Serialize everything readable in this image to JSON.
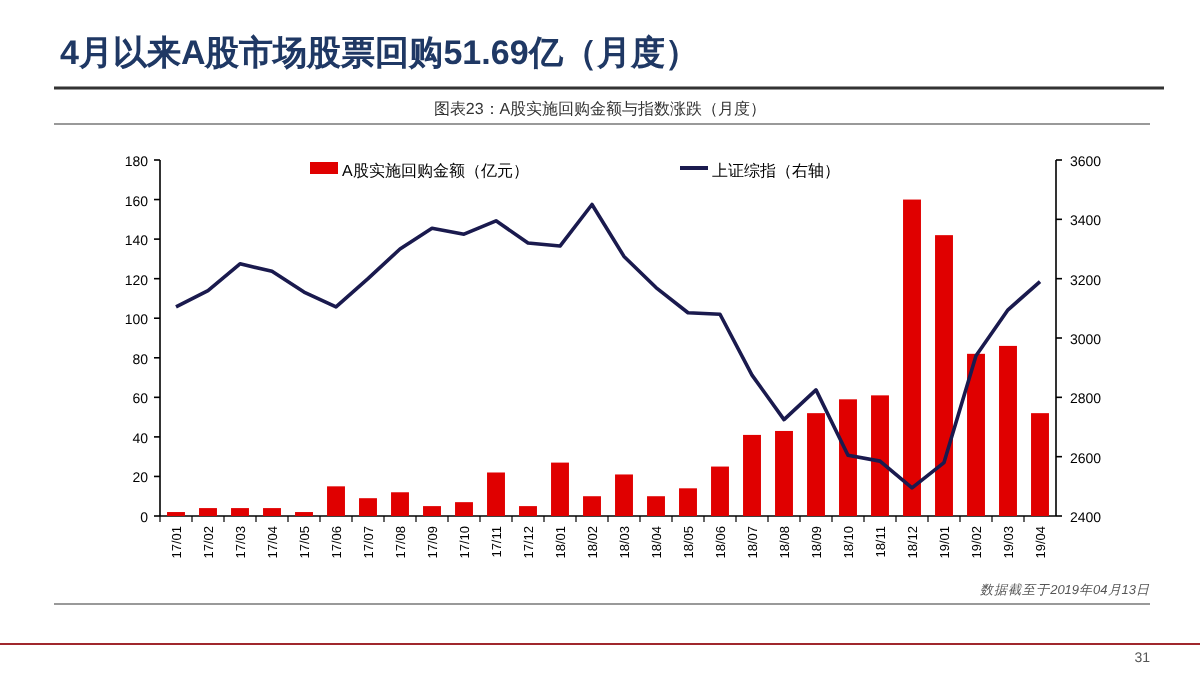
{
  "chart_data": {
    "type": "bar",
    "title": "4月以来A股市场股票回购51.69亿（月度）",
    "subtitle": "图表23：A股实施回购金额与指数涨跌（月度）",
    "categories": [
      "17/01",
      "17/02",
      "17/03",
      "17/04",
      "17/05",
      "17/06",
      "17/07",
      "17/08",
      "17/09",
      "17/10",
      "17/11",
      "17/12",
      "18/01",
      "18/02",
      "18/03",
      "18/04",
      "18/05",
      "18/06",
      "18/07",
      "18/08",
      "18/09",
      "18/10",
      "18/11",
      "18/12",
      "19/01",
      "19/02",
      "19/03",
      "19/04"
    ],
    "series": [
      {
        "name": "A股实施回购金额（亿元）",
        "color": "#e00000",
        "values": [
          2,
          4,
          4,
          4,
          2,
          15,
          9,
          12,
          5,
          7,
          22,
          5,
          27,
          10,
          21,
          10,
          14,
          25,
          41,
          43,
          52,
          59,
          61,
          160,
          142,
          82,
          86,
          52
        ]
      },
      {
        "name": "上证综指（右轴）",
        "type": "line",
        "axis": "y2",
        "color": "#1a1a4e",
        "values": [
          3105,
          3160,
          3250,
          3225,
          3155,
          3105,
          3200,
          3300,
          3370,
          3350,
          3395,
          3320,
          3310,
          3450,
          3275,
          3170,
          3085,
          3080,
          2875,
          2725,
          2825,
          2605,
          2585,
          2495,
          2580,
          2940,
          3095,
          3190
        ]
      }
    ],
    "ylim": [
      0,
      180
    ],
    "yticks": [
      0,
      20,
      40,
      60,
      80,
      100,
      120,
      140,
      160,
      180
    ],
    "y2lim": [
      2400,
      3600
    ],
    "y2ticks": [
      2400,
      2600,
      2800,
      3000,
      3200,
      3400,
      3600
    ],
    "legend": "top",
    "marker": "none",
    "grid": false,
    "annotations": [
      "数据截至于2019年04月13日",
      "31"
    ]
  }
}
